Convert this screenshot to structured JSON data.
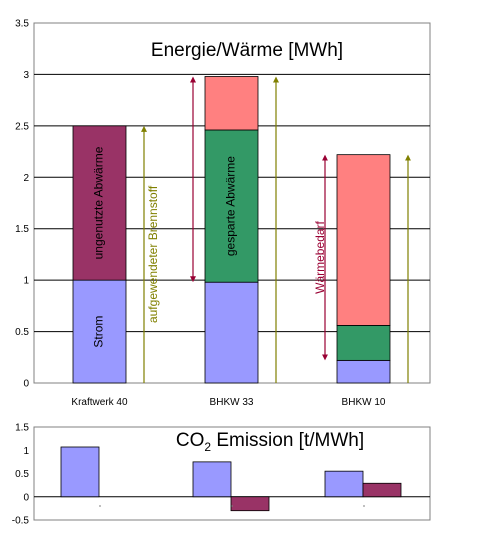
{
  "colors": {
    "strom": "#9999ff",
    "ungenutzt": "#993366",
    "gespart": "#339966",
    "waerme": "#ff8080",
    "brennstoff_arrow": "#808000",
    "bedarf_arrow": "#990033",
    "co2_positive": "#9999ff",
    "co2_negative": "#993366"
  },
  "chart_data": [
    {
      "type": "bar",
      "stacked": true,
      "title": "Energie/Wärme [MWh]",
      "categories": [
        "Kraftwerk 40",
        "BHKW 33",
        "BHKW 10"
      ],
      "ylim": [
        0,
        3.5
      ],
      "yticks": [
        "0",
        "0.5",
        "1",
        "1.5",
        "2",
        "2.5",
        "3",
        "3.5"
      ],
      "grid": true,
      "series": [
        {
          "key": "strom",
          "values": [
            1.0,
            0.98,
            0.22
          ]
        },
        {
          "key": "ungenutzt",
          "values": [
            1.5,
            0,
            0
          ]
        },
        {
          "key": "gespart",
          "values": [
            0,
            1.48,
            0.34
          ]
        },
        {
          "key": "waerme",
          "values": [
            0,
            0.52,
            1.66
          ]
        }
      ],
      "segment_labels": [
        {
          "text": "Strom",
          "category": 0,
          "series": "strom"
        },
        {
          "text": "ungenutzte Abwärme",
          "category": 0,
          "series": "ungenutzt"
        },
        {
          "text": "gesparte Abwärme",
          "category": 1,
          "series": "gespart"
        }
      ],
      "annotations": [
        {
          "text": "aufgewendeter Brennstoff",
          "kind": "brennstoff",
          "category": 0,
          "from": 0,
          "to": 2.5
        },
        {
          "text": "",
          "kind": "brennstoff",
          "category": 1,
          "from": 0,
          "to": 2.98
        },
        {
          "text": "",
          "kind": "brennstoff",
          "category": 2,
          "from": 0,
          "to": 2.22
        },
        {
          "text": "",
          "kind": "bedarf",
          "category": 1,
          "from": 0.98,
          "to": 2.98
        },
        {
          "text": "Wärmebedarf",
          "kind": "bedarf",
          "category": 2,
          "from": 0.22,
          "to": 2.22
        }
      ]
    },
    {
      "type": "bar",
      "title": "CO2 Emission [t/MWh]",
      "title_main": "CO",
      "title_sub": "2",
      "title_rest": " Emission [t/MWh]",
      "ylim": [
        -0.5,
        1.5
      ],
      "yticks": [
        "-0.5",
        "0",
        "0.5",
        "1",
        "1.5"
      ],
      "grid": false,
      "categories": [
        "",
        "",
        ""
      ],
      "series": [
        {
          "key": "co2_positive",
          "values": [
            1.07,
            0.75,
            0.55
          ]
        },
        {
          "key": "co2_negative",
          "values": [
            0,
            -0.3,
            0.29
          ]
        }
      ]
    }
  ]
}
